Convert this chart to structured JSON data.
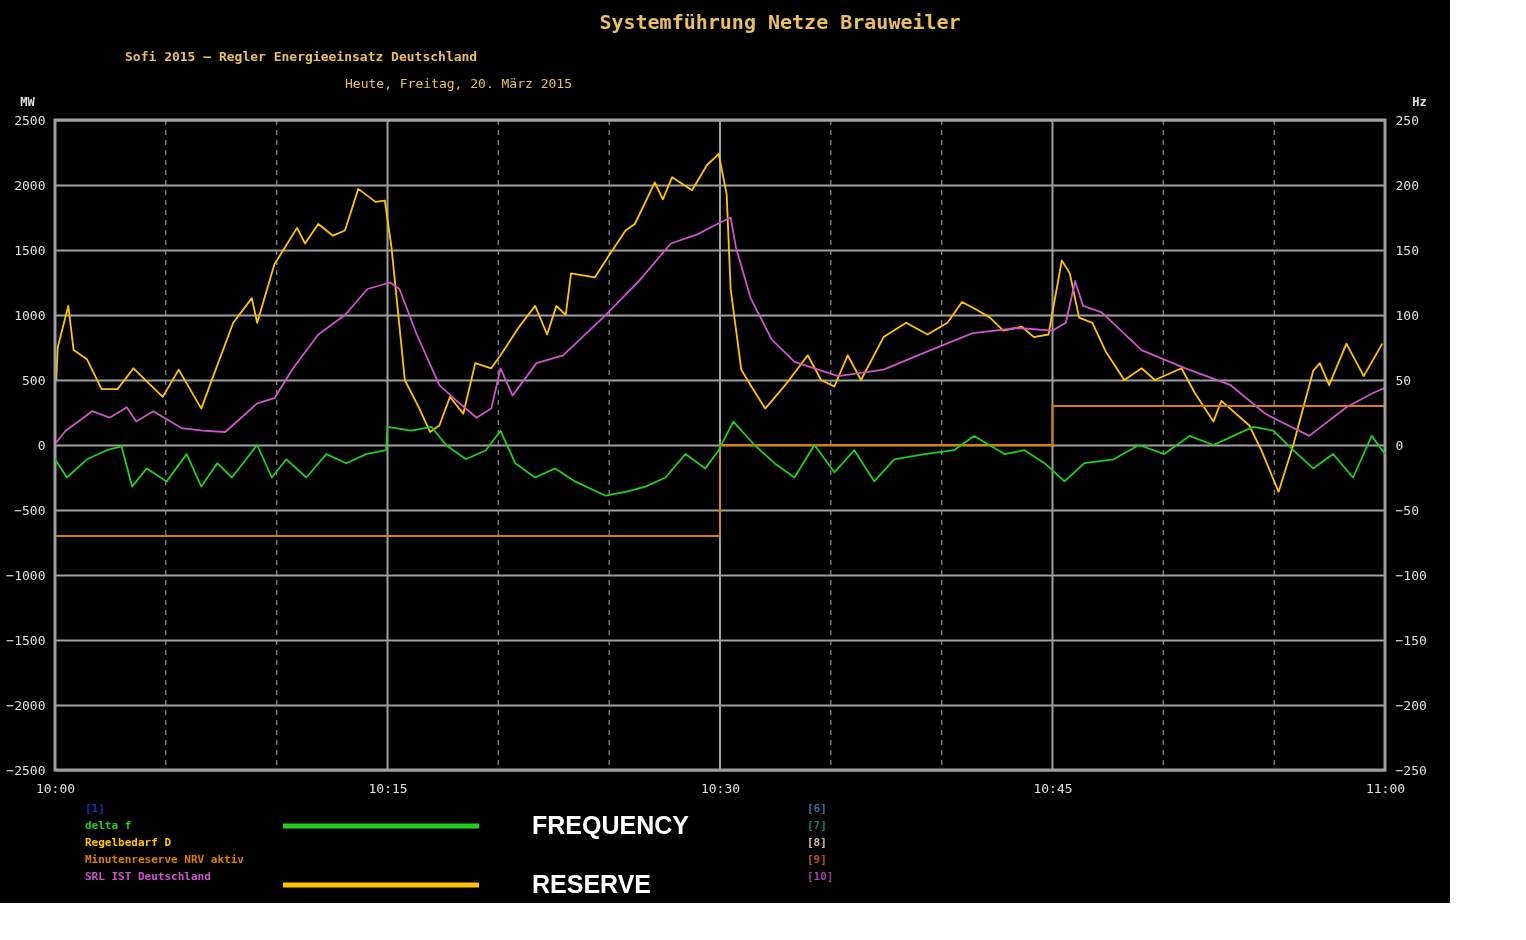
{
  "chart_data": {
    "type": "line",
    "title": "Systemführung Netze Brauweiler",
    "subtitle": "Sofi 2015 – Regler Energieeinsatz Deutschland",
    "ylabel": "MW",
    "y2label": "Hz",
    "xlim": [
      10,
      11
    ],
    "xticks": [
      {
        "value": 10,
        "label": "10:00"
      },
      {
        "value": 10.0833,
        "label": null
      },
      {
        "value": 10.1667,
        "label": null
      },
      {
        "value": 10.25,
        "label": "10:15"
      },
      {
        "value": 10.3333,
        "label": null
      },
      {
        "value": 10.4167,
        "label": null
      },
      {
        "value": 10.5,
        "label": "10:30"
      },
      {
        "value": 10.5833,
        "label": null
      },
      {
        "value": 10.6667,
        "label": null
      },
      {
        "value": 10.75,
        "label": "10:45"
      },
      {
        "value": 10.8333,
        "label": null
      },
      {
        "value": 10.9167,
        "label": null
      },
      {
        "value": 11,
        "label": "11:00"
      }
    ],
    "ylim": [
      -2500,
      2500
    ],
    "yticks": [
      -2500,
      -2000,
      -1500,
      -1000,
      -500,
      0,
      500,
      1000,
      1500,
      2000,
      2500
    ],
    "y2lim": [
      -250,
      250
    ],
    "y2ticks": [
      -250,
      -200,
      -150,
      -100,
      -50,
      0,
      50,
      100,
      150,
      200,
      250
    ],
    "grid": true,
    "legend": "bottom left",
    "line_style": "solid",
    "annotations": [
      "Heute, Freitag, 20. März 2015",
      "[1]",
      "[6]",
      "[7]",
      "[8]",
      "[9]",
      "[10]",
      "FREQUENCY",
      "RESERVE"
    ],
    "series": [
      {
        "name": "delta f",
        "color": "#22cc22",
        "axis": "y2",
        "x": [
          10.0,
          10.009,
          10.024,
          10.039,
          10.05,
          10.058,
          10.069,
          10.084,
          10.099,
          10.11,
          10.122,
          10.133,
          10.152,
          10.163,
          10.174,
          10.189,
          10.204,
          10.219,
          10.234,
          10.249,
          10.25,
          10.268,
          10.283,
          10.294,
          10.309,
          10.324,
          10.335,
          10.346,
          10.361,
          10.376,
          10.391,
          10.414,
          10.429,
          10.444,
          10.459,
          10.474,
          10.489,
          10.499,
          10.51,
          10.526,
          10.541,
          10.556,
          10.571,
          10.586,
          10.601,
          10.616,
          10.631,
          10.654,
          10.676,
          10.691,
          10.714,
          10.729,
          10.744,
          10.759,
          10.774,
          10.796,
          10.815,
          10.834,
          10.853,
          10.871,
          10.886,
          10.901,
          10.916,
          10.931,
          10.946,
          10.961,
          10.976,
          10.99,
          11.0
        ],
        "values": [
          -11,
          -25,
          -11,
          -4,
          -1,
          -32,
          -18,
          -28,
          -7,
          -32,
          -14,
          -25,
          0,
          -25,
          -11,
          -25,
          -7,
          -14,
          -7,
          -4,
          14,
          11,
          14,
          0,
          -11,
          -4,
          11,
          -14,
          -25,
          -18,
          -28,
          -39,
          -36,
          -32,
          -25,
          -7,
          -18,
          -4,
          18,
          0,
          -14,
          -25,
          0,
          -21,
          -4,
          -28,
          -11,
          -7,
          -4,
          7,
          -7,
          -4,
          -14,
          -28,
          -14,
          -11,
          0,
          -7,
          7,
          0,
          7,
          14,
          11,
          -4,
          -18,
          -7,
          -25,
          7,
          -7
        ]
      },
      {
        "name": "Regelbedarf D",
        "color": "#ffc400",
        "x": [
          10.001,
          10.002,
          10.01,
          10.014,
          10.024,
          10.035,
          10.047,
          10.059,
          10.081,
          10.093,
          10.11,
          10.119,
          10.134,
          10.148,
          10.152,
          10.165,
          10.182,
          10.188,
          10.198,
          10.209,
          10.218,
          10.228,
          10.241,
          10.248,
          10.253,
          10.26,
          10.263,
          10.274,
          10.282,
          10.289,
          10.297,
          10.307,
          10.316,
          10.328,
          10.335,
          10.349,
          10.361,
          10.37,
          10.377,
          10.384,
          10.388,
          10.406,
          10.416,
          10.429,
          10.436,
          10.451,
          10.457,
          10.464,
          10.479,
          10.49,
          10.499,
          10.505,
          10.508,
          10.516,
          10.523,
          10.534,
          10.549,
          10.566,
          10.576,
          10.586,
          10.596,
          10.606,
          10.623,
          10.64,
          10.656,
          10.671,
          10.682,
          10.693,
          10.703,
          10.713,
          10.727,
          10.736,
          10.747,
          10.757,
          10.763,
          10.77,
          10.78,
          10.79,
          10.804,
          10.817,
          10.827,
          10.847,
          10.857,
          10.871,
          10.877,
          10.898,
          10.907,
          10.92,
          10.931,
          10.946,
          10.951,
          10.958,
          10.971,
          10.984,
          10.998
        ],
        "values": [
          500,
          750,
          1070,
          730,
          660,
          430,
          430,
          590,
          370,
          580,
          280,
          530,
          940,
          1130,
          940,
          1390,
          1670,
          1550,
          1700,
          1610,
          1650,
          1970,
          1870,
          1880,
          1520,
          810,
          500,
          280,
          100,
          150,
          370,
          240,
          630,
          590,
          690,
          910,
          1070,
          850,
          1070,
          1000,
          1320,
          1290,
          1450,
          1650,
          1700,
          2020,
          1890,
          2060,
          1960,
          2150,
          2240,
          1930,
          1200,
          580,
          460,
          280,
          460,
          690,
          500,
          450,
          690,
          500,
          830,
          940,
          850,
          940,
          1100,
          1040,
          980,
          880,
          910,
          830,
          850,
          1420,
          1320,
          980,
          940,
          720,
          500,
          590,
          500,
          590,
          400,
          180,
          340,
          150,
          -40,
          -360,
          0,
          570,
          630,
          460,
          780,
          530,
          780
        ]
      },
      {
        "name": "Minutenreserve NRV aktiv",
        "color": "#d98000",
        "type": "step",
        "x": [
          10,
          10.5,
          10.75,
          11
        ],
        "values": [
          -700,
          0,
          300,
          300
        ]
      },
      {
        "name": "SRL IST Deutschland",
        "color": "#cc55cc",
        "x": [
          10.001,
          10.008,
          10.028,
          10.041,
          10.054,
          10.061,
          10.074,
          10.095,
          10.111,
          10.128,
          10.152,
          10.165,
          10.179,
          10.198,
          10.218,
          10.235,
          10.252,
          10.259,
          10.272,
          10.289,
          10.302,
          10.317,
          10.328,
          10.335,
          10.344,
          10.362,
          10.382,
          10.412,
          10.439,
          10.463,
          10.483,
          10.496,
          10.508,
          10.512,
          10.523,
          10.539,
          10.556,
          10.589,
          10.623,
          10.656,
          10.69,
          10.724,
          10.75,
          10.76,
          10.767,
          10.773,
          10.787,
          10.817,
          10.85,
          10.884,
          10.91,
          10.943,
          10.971,
          10.991,
          11.0
        ],
        "values": [
          20,
          110,
          260,
          210,
          290,
          180,
          260,
          130,
          110,
          100,
          320,
          360,
          590,
          850,
          1000,
          1200,
          1250,
          1200,
          850,
          460,
          340,
          210,
          280,
          590,
          380,
          630,
          690,
          980,
          1260,
          1550,
          1620,
          1690,
          1750,
          1520,
          1130,
          810,
          640,
          530,
          580,
          720,
          860,
          900,
          880,
          940,
          1260,
          1070,
          1020,
          730,
          590,
          460,
          240,
          70,
          290,
          400,
          440
        ]
      }
    ]
  }
}
